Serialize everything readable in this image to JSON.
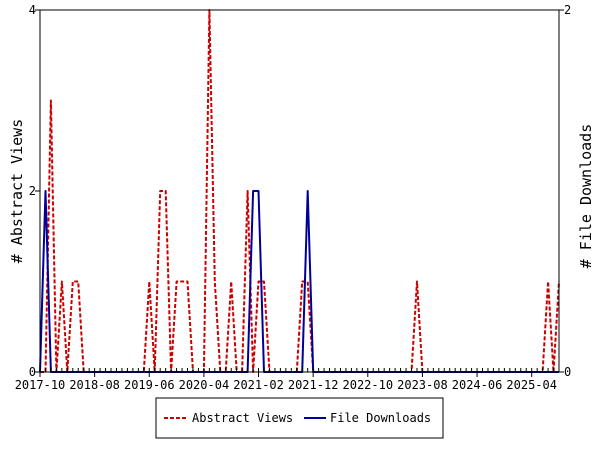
{
  "chart_data": {
    "type": "line",
    "x_tick_labels": [
      "2017-10",
      "2018-08",
      "2019-06",
      "2020-04",
      "2021-02",
      "2021-12",
      "2022-10",
      "2023-08",
      "2024-06",
      "2025-04"
    ],
    "x_range": [
      "2017-10",
      "2025-09"
    ],
    "ylabel_left": "# Abstract Views",
    "ylabel_right": "# File Downloads",
    "ylim_left": [
      0,
      4
    ],
    "ylim_right": [
      0,
      2
    ],
    "yticks_left": [
      "0",
      "2",
      "4"
    ],
    "yticks_right": [
      "0",
      "2"
    ],
    "grid": false,
    "legend_position": "bottom",
    "series": [
      {
        "name": "Abstract Views",
        "axis": "left",
        "color": "#cc0000",
        "dash": true,
        "x": [
          "2017-10",
          "2017-11",
          "2017-12",
          "2018-01",
          "2018-02",
          "2018-03",
          "2018-04",
          "2018-05",
          "2018-06",
          "2018-07",
          "2018-08",
          "2018-09",
          "2018-10",
          "2018-11",
          "2018-12",
          "2019-01",
          "2019-02",
          "2019-03",
          "2019-04",
          "2019-05",
          "2019-06",
          "2019-07",
          "2019-08",
          "2019-09",
          "2019-10",
          "2019-11",
          "2019-12",
          "2020-01",
          "2020-02",
          "2020-03",
          "2020-04",
          "2020-05",
          "2020-06",
          "2020-07",
          "2020-08",
          "2020-09",
          "2020-10",
          "2020-11",
          "2020-12",
          "2021-01",
          "2021-02",
          "2021-03",
          "2021-04",
          "2021-05",
          "2021-06",
          "2021-07",
          "2021-08",
          "2021-09",
          "2021-10",
          "2021-11",
          "2021-12",
          "2022-01",
          "2022-02",
          "2022-03",
          "2022-04",
          "2022-05",
          "2022-06",
          "2022-07",
          "2022-08",
          "2022-09",
          "2022-10",
          "2022-11",
          "2022-12",
          "2023-01",
          "2023-02",
          "2023-03",
          "2023-04",
          "2023-05",
          "2023-06",
          "2023-07",
          "2023-08",
          "2023-09",
          "2023-10",
          "2023-11",
          "2023-12",
          "2024-01",
          "2024-02",
          "2024-03",
          "2024-04",
          "2024-05",
          "2024-06",
          "2024-07",
          "2024-08",
          "2024-09",
          "2024-10",
          "2024-11",
          "2024-12",
          "2025-01",
          "2025-02",
          "2025-03",
          "2025-04",
          "2025-05",
          "2025-06",
          "2025-07",
          "2025-08",
          "2025-09"
        ],
        "values": [
          0,
          0,
          3,
          0,
          1,
          0,
          1,
          1,
          0,
          0,
          0,
          0,
          0,
          0,
          0,
          0,
          0,
          0,
          0,
          0,
          1,
          0,
          2,
          2,
          0,
          1,
          1,
          1,
          0,
          0,
          0,
          4,
          1,
          0,
          0,
          1,
          0,
          0,
          2,
          0,
          1,
          1,
          0,
          0,
          0,
          0,
          0,
          0,
          1,
          1,
          0,
          0,
          0,
          0,
          0,
          0,
          0,
          0,
          0,
          0,
          0,
          0,
          0,
          0,
          0,
          0,
          0,
          0,
          0,
          1,
          0,
          0,
          0,
          0,
          0,
          0,
          0,
          0,
          0,
          0,
          0,
          0,
          0,
          0,
          0,
          0,
          0,
          0,
          0,
          0,
          0,
          0,
          0,
          1,
          0,
          1
        ]
      },
      {
        "name": "File Downloads",
        "axis": "right",
        "color": "#000099",
        "dash": false,
        "x": [
          "2017-10",
          "2017-11",
          "2017-12",
          "2018-01",
          "2018-02",
          "2018-03",
          "2018-04",
          "2018-05",
          "2018-06",
          "2018-07",
          "2018-08",
          "2018-09",
          "2018-10",
          "2018-11",
          "2018-12",
          "2019-01",
          "2019-02",
          "2019-03",
          "2019-04",
          "2019-05",
          "2019-06",
          "2019-07",
          "2019-08",
          "2019-09",
          "2019-10",
          "2019-11",
          "2019-12",
          "2020-01",
          "2020-02",
          "2020-03",
          "2020-04",
          "2020-05",
          "2020-06",
          "2020-07",
          "2020-08",
          "2020-09",
          "2020-10",
          "2020-11",
          "2020-12",
          "2021-01",
          "2021-02",
          "2021-03",
          "2021-04",
          "2021-05",
          "2021-06",
          "2021-07",
          "2021-08",
          "2021-09",
          "2021-10",
          "2021-11",
          "2021-12",
          "2022-01",
          "2022-02",
          "2022-03",
          "2022-04",
          "2022-05",
          "2022-06",
          "2022-07",
          "2022-08",
          "2022-09",
          "2022-10",
          "2022-11",
          "2022-12",
          "2023-01",
          "2023-02",
          "2023-03",
          "2023-04",
          "2023-05",
          "2023-06",
          "2023-07",
          "2023-08",
          "2023-09",
          "2023-10",
          "2023-11",
          "2023-12",
          "2024-01",
          "2024-02",
          "2024-03",
          "2024-04",
          "2024-05",
          "2024-06",
          "2024-07",
          "2024-08",
          "2024-09",
          "2024-10",
          "2024-11",
          "2024-12",
          "2025-01",
          "2025-02",
          "2025-03",
          "2025-04",
          "2025-05",
          "2025-06",
          "2025-07",
          "2025-08",
          "2025-09"
        ],
        "values": [
          0,
          1,
          0,
          0,
          0,
          0,
          0,
          0,
          0,
          0,
          0,
          0,
          0,
          0,
          0,
          0,
          0,
          0,
          0,
          0,
          0,
          0,
          0,
          0,
          0,
          0,
          0,
          0,
          0,
          0,
          0,
          0,
          0,
          0,
          0,
          0,
          0,
          0,
          0,
          1,
          1,
          0,
          0,
          0,
          0,
          0,
          0,
          0,
          0,
          1,
          0,
          0,
          0,
          0,
          0,
          0,
          0,
          0,
          0,
          0,
          0,
          0,
          0,
          0,
          0,
          0,
          0,
          0,
          0,
          0,
          0,
          0,
          0,
          0,
          0,
          0,
          0,
          0,
          0,
          0,
          0,
          0,
          0,
          0,
          0,
          0,
          0,
          0,
          0,
          0,
          0,
          0,
          0,
          0,
          0,
          0
        ]
      }
    ]
  }
}
